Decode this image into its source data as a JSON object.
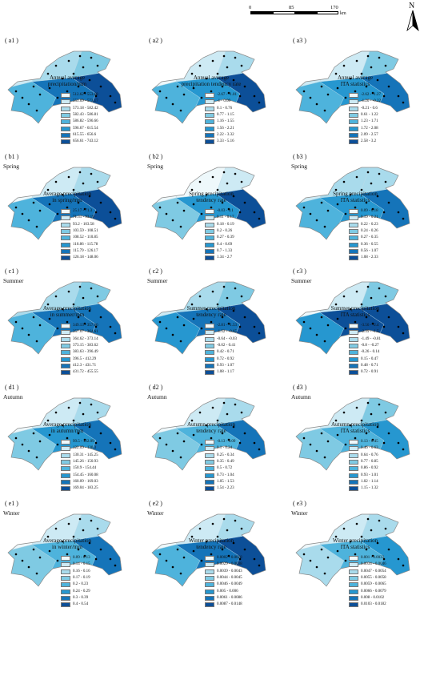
{
  "scale": {
    "ticks": [
      "0",
      "85",
      "170"
    ],
    "unit": "km"
  },
  "north_label": "N",
  "palette": [
    "#eef8fb",
    "#cdeaf4",
    "#a9dbec",
    "#7fcae3",
    "#4eb3dc",
    "#2697d0",
    "#1574b9",
    "#0c4f98"
  ],
  "panels": [
    {
      "id": "a1",
      "label": "( a1 )",
      "season": "",
      "title": "Annual average\nprecipitation/mm",
      "classes": [
        "512.62 - 553.68",
        "553.69 - 573.17",
        "573.18 - 582.42",
        "582.43 - 586.81",
        "586.82 - 596.66",
        "596.67 - 615.54",
        "615.55 - 656.6",
        "656.61 - 743.12"
      ]
    },
    {
      "id": "a2",
      "label": "( a2 )",
      "season": "",
      "title": "Annual average\nprecipitation tendency rate",
      "classes": [
        "-2.67 - -1.01",
        "-1 - 0.09",
        "0.1 - 0.76",
        "0.77 - 1.15",
        "1.16 - 1.55",
        "1.56 - 2.21",
        "2.22 - 3.32",
        "3.33 - 5.16"
      ]
    },
    {
      "id": "a3",
      "label": "( a3 )",
      "season": "",
      "title": "Annual average\nITA statistics",
      "classes": [
        "-2.62 - -1.27",
        "-1.26 - -0.22",
        "-0.21 - 0.6",
        "0.61 - 1.22",
        "1.23 - 1.71",
        "1.72 - 2.08",
        "2.09 - 2.57",
        "2.58 - 3.2"
      ]
    },
    {
      "id": "b1",
      "label": "( b1 )",
      "season": "Spring",
      "title": "Average precipitation\nin spring/mm",
      "classes": [
        "25.17 - 71.3",
        "71.31 - 93.19",
        "93.2 - 103.58",
        "103.59 - 108.51",
        "108.52 - 110.85",
        "110.86 - 115.78",
        "115.79 - 126.17",
        "126.18 - 148.06"
      ]
    },
    {
      "id": "b2",
      "label": "( b2 )",
      "season": "Spring",
      "title": "Spring precipitation\ntendency rate",
      "classes": [
        "-0.03 - 0.1",
        "0.11 - 0.17",
        "0.18 - 0.19",
        "0.2 - 0.26",
        "0.27 - 0.39",
        "0.4 - 0.69",
        "0.7 - 1.33",
        "1.34 - 2.7"
      ]
    },
    {
      "id": "b3",
      "label": "( b3 )",
      "season": "Spring",
      "title": "Spring precipitation\nITA statistics",
      "classes": [
        "0.09 - 0.18",
        "0.19 - 0.21",
        "0.22 - 0.23",
        "0.24 - 0.26",
        "0.27 - 0.35",
        "0.36 - 0.55",
        "0.56 - 1.07",
        "1.08 - 2.33"
      ]
    },
    {
      "id": "c1",
      "label": "( c1 )",
      "season": "Summer",
      "title": "Average precipitation\nin summer/mm",
      "classes": [
        "349.13 - 357.66",
        "357.67 - 364.61",
        "364.62 - 373.14",
        "373.15 - 383.62",
        "383.63 - 396.49",
        "396.5 - 412.29",
        "412.3 - 431.71",
        "431.72 - 455.55"
      ]
    },
    {
      "id": "c2",
      "label": "( c2 )",
      "season": "Summer",
      "title": "Summer precipitation\ntendency rate",
      "classes": [
        "-2.81 - -1.53",
        "-1.52 - -0.65",
        "-0.64 - -0.03",
        "-0.02 - 0.41",
        "0.42 - 0.71",
        "0.72 - 0.92",
        "0.93 - 1.07",
        "1.08 - 1.17"
      ]
    },
    {
      "id": "c3",
      "label": "( c3 )",
      "season": "Summer",
      "title": "Summer precipitation\nITA statistics",
      "classes": [
        "-3.56 - -2.4",
        "-2.39 - -1.5",
        "-1.49 - -0.81",
        "-0.8 - -0.27",
        "-0.26 - 0.14",
        "0.15 - 0.47",
        "0.48 - 0.71",
        "0.72 - 0.91"
      ]
    },
    {
      "id": "d1",
      "label": "( d1 )",
      "season": "Autumn",
      "title": "Average precipitation\nin autumn/mm",
      "classes": [
        "99.5 - 122.09",
        "122.09 - 130.3",
        "130.31 - 145.25",
        "145.26 - 150.93",
        "150.9 - 154.44",
        "154.45 - 160.08",
        "160.09 - 169.03",
        "169.04 - 183.25"
      ]
    },
    {
      "id": "d2",
      "label": "( d2 )",
      "season": "Autumn",
      "title": "Autumn precipitation\ntendency rate",
      "classes": [
        "-0.13 - 0.09",
        "0.1 - 0.24",
        "0.25 - 0.34",
        "0.35 - 0.49",
        "0.5 - 0.72",
        "0.73 - 1.04",
        "1.05 - 1.53",
        "1.54 - 2.23"
      ]
    },
    {
      "id": "d3",
      "label": "( d3 )",
      "season": "Autumn",
      "title": "Autumn precipitation\nITA statistics",
      "classes": [
        "0.13 - 0.45",
        "0.46 - 0.63",
        "0.64 - 0.76",
        "0.77 - 0.85",
        "0.86 - 0.92",
        "0.93 - 1.01",
        "1.02 - 1.14",
        "1.15 - 1.32"
      ]
    },
    {
      "id": "e1",
      "label": "( e1 )",
      "season": "Winter",
      "title": "Average precipitation\nin winter/mm",
      "classes": [
        "0.09 - 0.13",
        "0.14 - 0.15",
        "0.16 - 0.16",
        "0.17 - 0.19",
        "0.2 - 0.23",
        "0.24 - 0.29",
        "0.3 - 0.39",
        "0.4 - 0.54"
      ]
    },
    {
      "id": "e2",
      "label": "( e2 )",
      "season": "Winter",
      "title": "Winter precipitation\ntendency rate",
      "classes": [
        "0.0002 - 0.0028",
        "0.0029 - 0.0038",
        "0.0039 - 0.0043",
        "0.0044 - 0.0045",
        "0.0046 - 0.0049",
        "0.005 - 0.006",
        "0.0061 - 0.0086",
        "0.0087 - 0.0148"
      ]
    },
    {
      "id": "e3",
      "label": "( e3 )",
      "season": "Winter",
      "title": "Winter precipitation\nITA statistics",
      "classes": [
        "0.001 - 0.0033",
        "0.0034 - 0.0046",
        "0.0047 - 0.0054",
        "0.0055 - 0.0058",
        "0.0059 - 0.0065",
        "0.0066 - 0.0079",
        "0.008 - 0.0102",
        "0.0103 - 0.0182"
      ]
    }
  ]
}
